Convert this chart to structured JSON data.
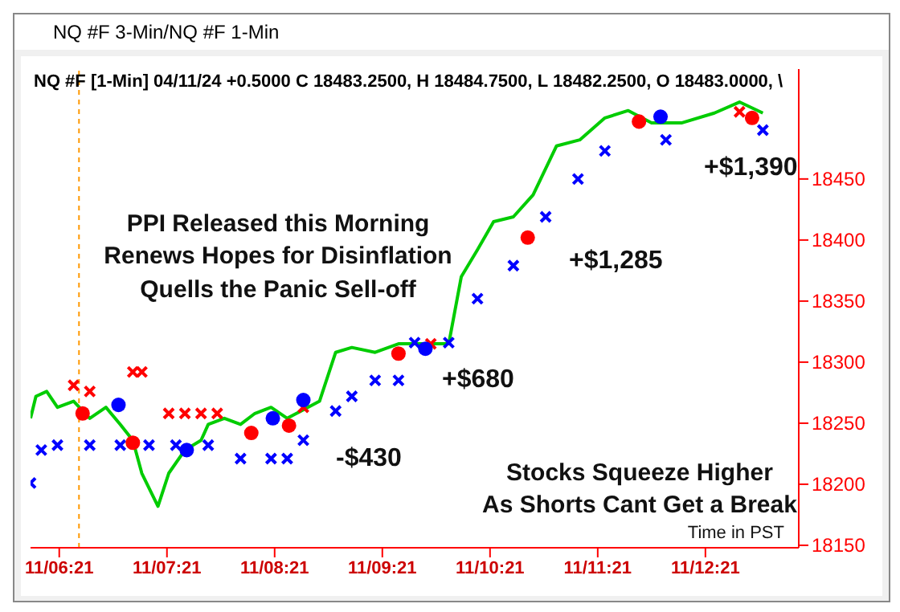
{
  "chart_data": {
    "type": "line",
    "title": "NQ #F 3-Min/NQ #F 1-Min",
    "subtitle": "NQ #F [1-Min] 04/11/24  +0.5000 C 18483.2500, H 18484.7500, L 18482.2500, O 18483.0000, \\",
    "xlim": [
      "--04-11T06:05",
      "--04-11T13:13"
    ],
    "ylim": [
      18148,
      18540
    ],
    "xticks": [
      {
        "value": "--04-11T06:21",
        "label": "11/06:21"
      },
      {
        "value": "--04-11T07:21",
        "label": "11/07:21"
      },
      {
        "value": "--04-11T08:21",
        "label": "11/08:21"
      },
      {
        "value": "--04-11T09:21",
        "label": "11/09:21"
      },
      {
        "value": "--04-11T10:21",
        "label": "11/10:21"
      },
      {
        "value": "--04-11T11:21",
        "label": "11/11:21"
      },
      {
        "value": "--04-11T12:21",
        "label": "11/12:21"
      }
    ],
    "yticks": [
      18150,
      18200,
      18250,
      18300,
      18350,
      18400,
      18450
    ],
    "grid": false,
    "legend": false,
    "ref_lines": [
      {
        "axis": "x",
        "value": "--04-11T06:32",
        "color": "#ff9900",
        "line_style": "dotted"
      }
    ],
    "series": [
      {
        "color": "#00cc00",
        "marker": "none",
        "x": [
          "--04-11T06:05",
          "--04-11T06:08",
          "--04-11T06:14",
          "--04-11T06:20",
          "--04-11T06:29",
          "--04-11T06:38",
          "--04-11T06:47",
          "--04-11T06:55",
          "--04-11T07:02",
          "--04-11T07:07",
          "--04-11T07:16",
          "--04-11T07:22",
          "--04-11T07:31",
          "--04-11T07:40",
          "--04-11T07:44",
          "--04-11T07:53",
          "--04-11T08:02",
          "--04-11T08:10",
          "--04-11T08:19",
          "--04-11T08:28",
          "--04-11T08:37",
          "--04-11T08:46",
          "--04-11T08:55",
          "--04-11T09:04",
          "--04-11T09:17",
          "--04-11T09:30",
          "--04-11T09:43",
          "--04-11T09:58",
          "--04-11T10:05",
          "--04-11T10:14",
          "--04-11T10:23",
          "--04-11T10:34",
          "--04-11T10:45",
          "--04-11T10:58",
          "--04-11T11:11",
          "--04-11T11:25",
          "--04-11T11:38",
          "--04-11T11:51",
          "--04-11T12:08",
          "--04-11T12:26",
          "--04-11T12:40",
          "--04-11T12:53"
        ],
        "values": [
          18254,
          18272,
          18276,
          18263,
          18268,
          18254,
          18263,
          18249,
          18236,
          18209,
          18182,
          18209,
          18228,
          18236,
          18249,
          18254,
          18249,
          18258,
          18263,
          18254,
          18261,
          18268,
          18308,
          18312,
          18308,
          18315,
          18315,
          18315,
          18370,
          18392,
          18415,
          18419,
          18437,
          18477,
          18482,
          18500,
          18506,
          18496,
          18496,
          18504,
          18513,
          18504
        ]
      },
      {
        "type": "scatter",
        "color": "#0000ff",
        "marker": "cross",
        "x": [
          "--04-11T06:05",
          "--04-11T06:11",
          "--04-11T06:20",
          "--04-11T06:38",
          "--04-11T06:55",
          "--04-11T07:11",
          "--04-11T07:26",
          "--04-11T07:44",
          "--04-11T08:02",
          "--04-11T08:19",
          "--04-11T08:28",
          "--04-11T08:37",
          "--04-11T08:55",
          "--04-11T09:04",
          "--04-11T09:17",
          "--04-11T09:30",
          "--04-11T09:39",
          "--04-11T09:58",
          "--04-11T10:14",
          "--04-11T10:34",
          "--04-11T10:52",
          "--04-11T11:10",
          "--04-11T11:25",
          "--04-11T11:59",
          "--04-11T12:53"
        ],
        "values": [
          18201,
          18228,
          18232,
          18232,
          18232,
          18232,
          18232,
          18232,
          18221,
          18221,
          18221,
          18236,
          18260,
          18272,
          18285,
          18285,
          18316,
          18316,
          18352,
          18379,
          18419,
          18450,
          18473,
          18482,
          18490
        ]
      },
      {
        "type": "scatter",
        "color": "#ff0000",
        "marker": "cross",
        "x": [
          "--04-11T06:29",
          "--04-11T06:38",
          "--04-11T07:02",
          "--04-11T07:07",
          "--04-11T07:22",
          "--04-11T07:31",
          "--04-11T07:40",
          "--04-11T07:49",
          "--04-11T08:37",
          "--04-11T09:48",
          "--04-11T12:40"
        ],
        "values": [
          18281,
          18276,
          18292,
          18292,
          18258,
          18258,
          18258,
          18258,
          18263,
          18315,
          18505
        ]
      },
      {
        "type": "scatter",
        "color": "#ff0000",
        "marker": "circle",
        "x": [
          "--04-11T06:34",
          "--04-11T07:02",
          "--04-11T08:08",
          "--04-11T08:29",
          "--04-11T09:30",
          "--04-11T10:42",
          "--04-11T11:44",
          "--04-11T12:47"
        ],
        "values": [
          18258,
          18234,
          18242,
          18248,
          18307,
          18402,
          18497,
          18500
        ]
      },
      {
        "type": "scatter",
        "color": "#0000ff",
        "marker": "circle",
        "x": [
          "--04-11T06:54",
          "--04-11T07:32",
          "--04-11T08:20",
          "--04-11T08:37",
          "--04-11T09:45",
          "--04-11T11:56"
        ],
        "values": [
          18265,
          18228,
          18254,
          18269,
          18311,
          18501
        ]
      }
    ],
    "annotations": [
      "PPI Released this Morning\nRenews Hopes for Disinflation\nQuells the Panic Sell-off",
      "Stocks Squeeze Higher\nAs Shorts Cant Get a Break",
      "Time in PST",
      "-$430",
      "+$680",
      "+$1,285",
      "+$1,390"
    ]
  }
}
